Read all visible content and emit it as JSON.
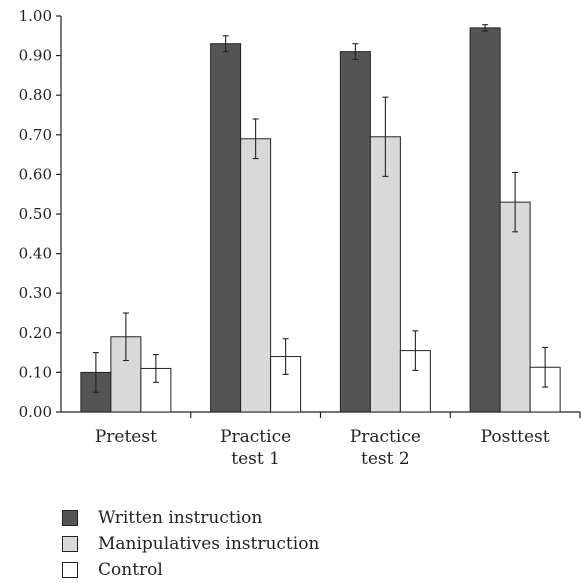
{
  "chart_data": {
    "type": "bar",
    "categories": [
      [
        "Pretest"
      ],
      [
        "Practice",
        "test 1"
      ],
      [
        "Practice",
        "test 2"
      ],
      [
        "Posttest"
      ]
    ],
    "ylim": [
      0,
      1.0
    ],
    "yticks": [
      "0.00",
      "0.10",
      "0.20",
      "0.30",
      "0.40",
      "0.50",
      "0.60",
      "0.70",
      "0.80",
      "0.90",
      "1.00"
    ],
    "series": [
      {
        "name": "Written instruction",
        "color": "#555555",
        "values": [
          0.1,
          0.93,
          0.91,
          0.97
        ],
        "errors": [
          0.05,
          0.02,
          0.02,
          0.008
        ]
      },
      {
        "name": "Manipulatives instruction",
        "color": "#d9d9d9",
        "values": [
          0.19,
          0.69,
          0.695,
          0.53
        ],
        "errors": [
          0.06,
          0.05,
          0.1,
          0.075
        ]
      },
      {
        "name": "Control",
        "color": "#ffffff",
        "values": [
          0.11,
          0.14,
          0.155,
          0.113
        ],
        "errors": [
          0.035,
          0.045,
          0.05,
          0.05
        ]
      }
    ]
  }
}
